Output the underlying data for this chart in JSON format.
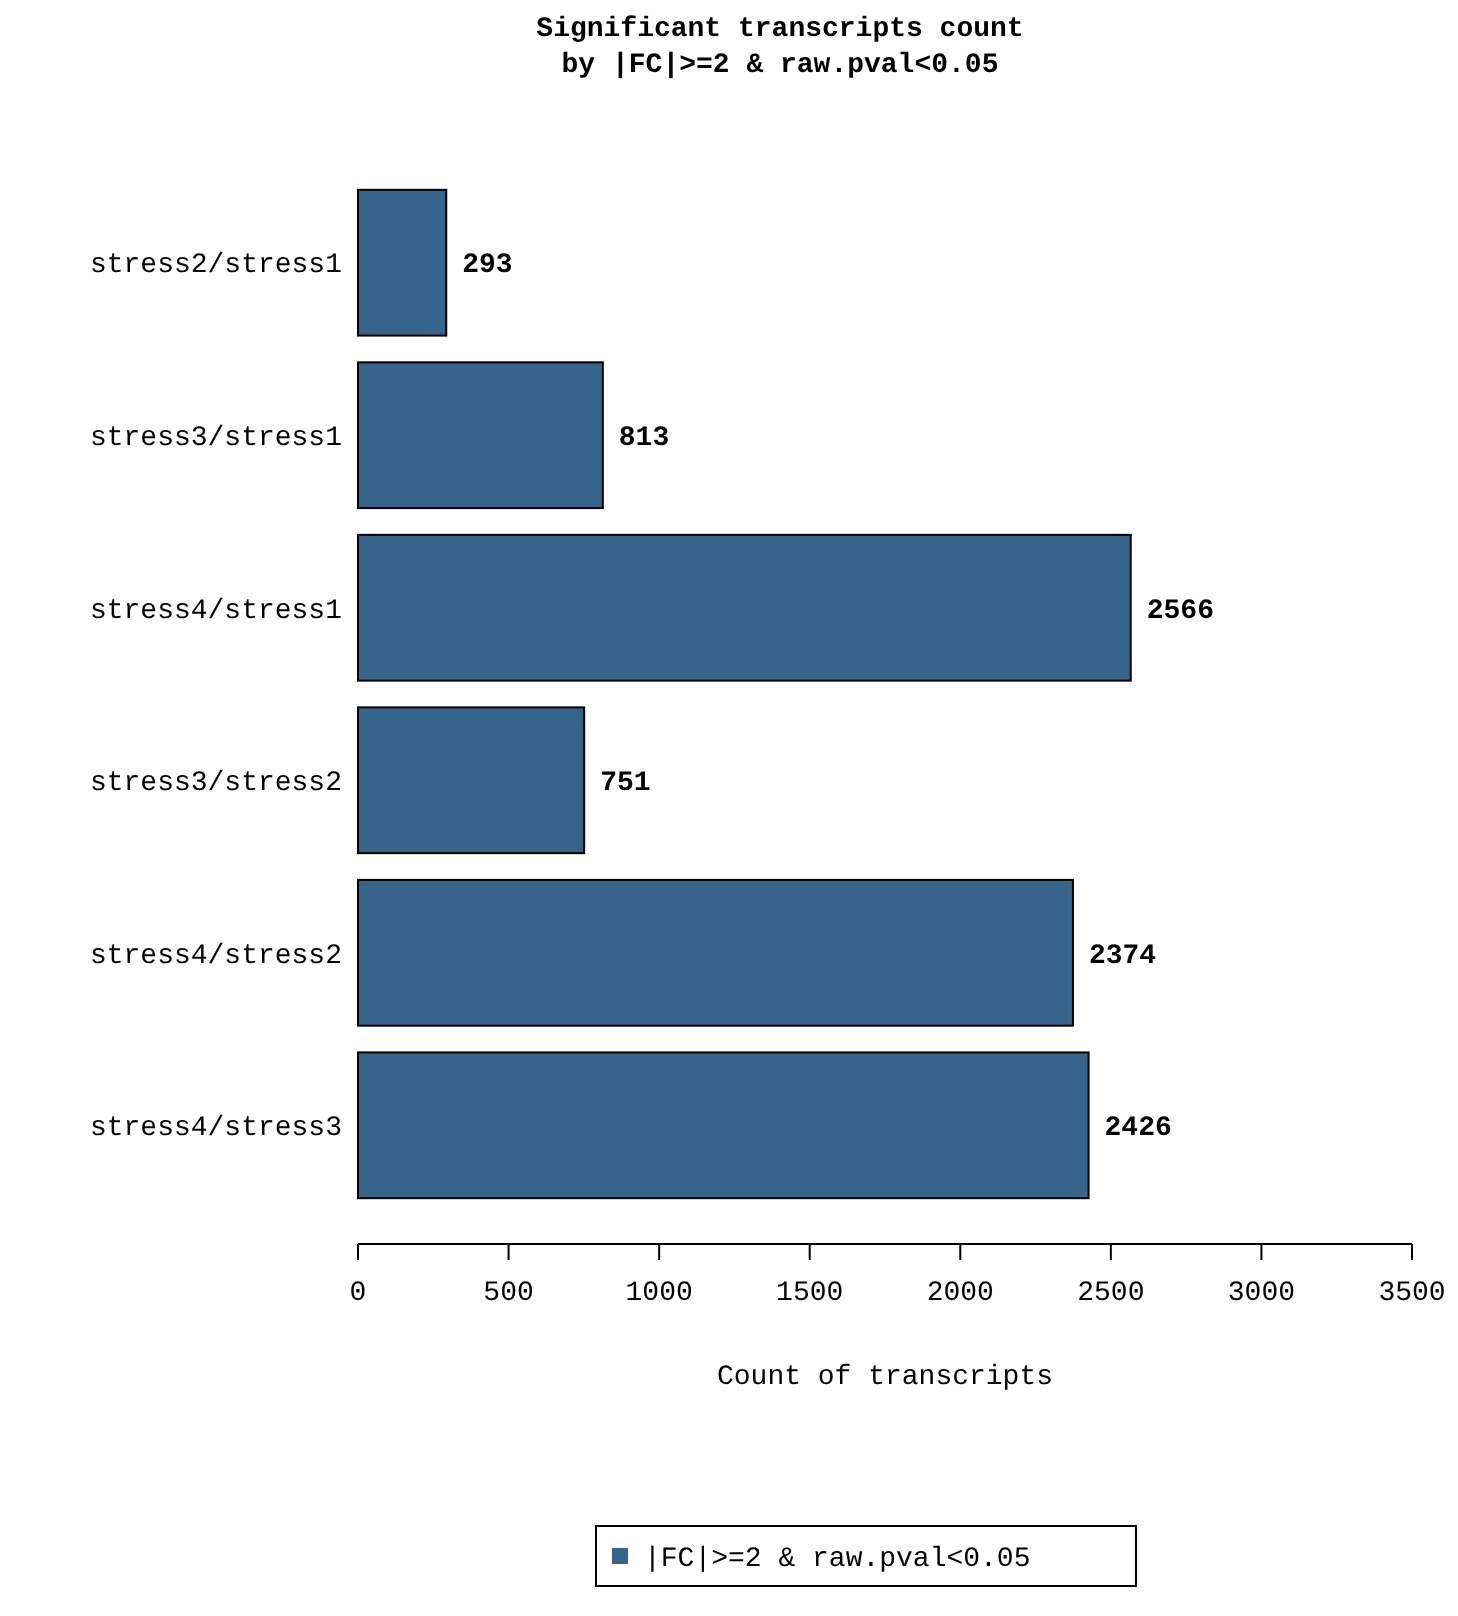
{
  "chart_data": {
    "type": "bar",
    "orientation": "horizontal",
    "title": "Significant transcripts count",
    "subtitle": "by |FC|>=2 & raw.pval<0.05",
    "xlabel": "Count of transcripts",
    "categories": [
      "stress2/stress1",
      "stress3/stress1",
      "stress4/stress1",
      "stress3/stress2",
      "stress4/stress2",
      "stress4/stress3"
    ],
    "series": [
      {
        "name": "|FC|>=2 & raw.pval<0.05",
        "color": "#36648b",
        "values": [
          293,
          813,
          2566,
          751,
          2374,
          2426
        ]
      }
    ],
    "xlim": [
      0,
      3500
    ],
    "xticks": [
      0,
      500,
      1000,
      1500,
      2000,
      2500,
      3000,
      3500
    ],
    "data_labels": true,
    "legend": "bottom",
    "grid": false
  }
}
